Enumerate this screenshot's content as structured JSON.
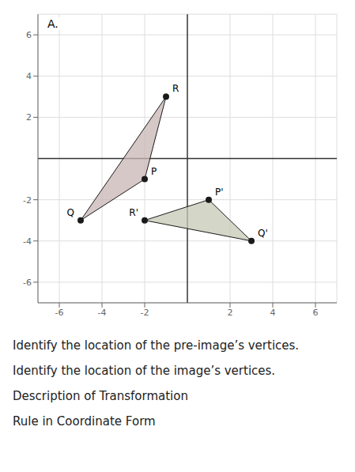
{
  "chart_data": {
    "type": "polygon",
    "title": "A.",
    "xlim": [
      -7,
      7
    ],
    "ylim": [
      -7,
      7
    ],
    "xticks": [
      -6,
      -4,
      -2,
      2,
      4,
      6
    ],
    "yticks": [
      -6,
      -4,
      -2,
      2,
      4,
      6
    ],
    "grid": true,
    "color": "#1a1a1a",
    "series": [
      {
        "color": "#c9b5b5",
        "x": [
          -2,
          -5,
          -1
        ],
        "values": [
          -1,
          -3,
          3
        ],
        "labels": [
          "P",
          "Q",
          "R"
        ]
      },
      {
        "color": "#c5c9b5",
        "x": [
          1,
          3,
          -2
        ],
        "values": [
          -2,
          -4,
          -3
        ],
        "labels": [
          "P'",
          "Q'",
          "R'"
        ]
      }
    ],
    "annotations": [
      "Identify the location of the pre-image’s vertices.",
      "Identify the location of the image’s vertices.",
      "Description of Transformation",
      "Rule in Coordinate Form"
    ]
  }
}
